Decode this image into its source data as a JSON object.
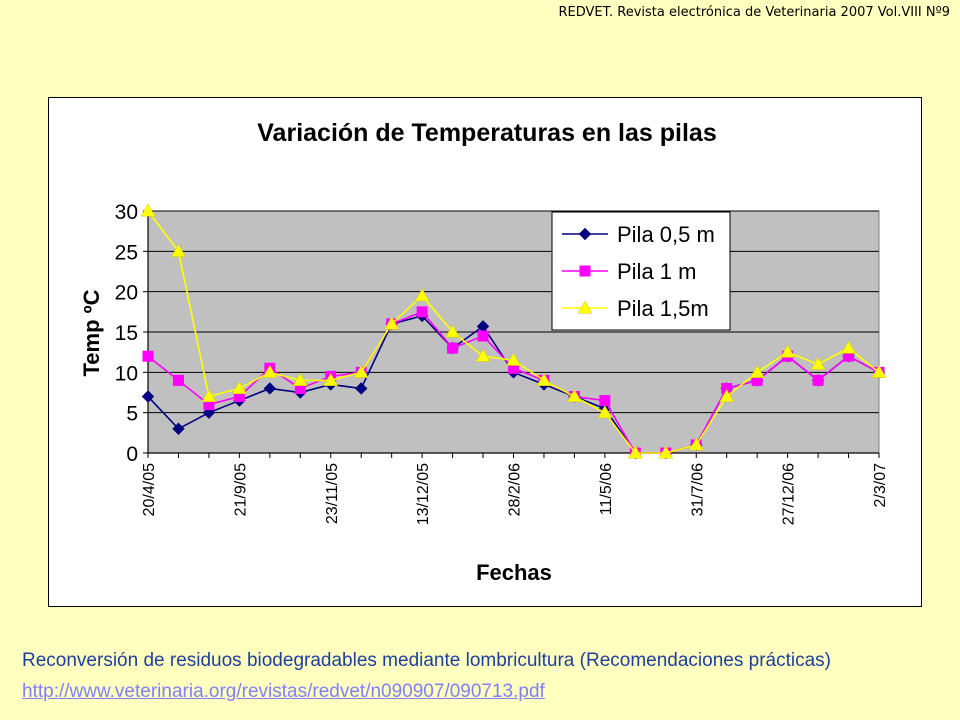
{
  "header": {
    "citation": "REDVET. Revista electrónica de Veterinaria 2007 Vol.VIII Nº9"
  },
  "footer": {
    "text": "Reconversión de residuos biodegradables mediante lombricultura (Recomendaciones prácticas)",
    "link": "http://www.veterinaria.org/revistas/redvet/n090907/090713.pdf"
  },
  "chart_data": {
    "type": "line",
    "title": "Variación de Temperaturas en las pilas",
    "xlabel": "Fechas",
    "ylabel": "Temp ºC",
    "ylim": [
      0,
      30
    ],
    "yticks": [
      0,
      5,
      10,
      15,
      20,
      25,
      30
    ],
    "grid": true,
    "plot_background": "#c0c0c0",
    "legend_position": "top-right",
    "x_tick_labels": [
      {
        "index": 0,
        "label": "20/4/05"
      },
      {
        "index": 3,
        "label": "21/9/05"
      },
      {
        "index": 6,
        "label": "23/11/05"
      },
      {
        "index": 9,
        "label": "13/12/05"
      },
      {
        "index": 12,
        "label": "28/2/06"
      },
      {
        "index": 15,
        "label": "11/5/06"
      },
      {
        "index": 18,
        "label": "31/7/06"
      },
      {
        "index": 21,
        "label": "27/12/06"
      },
      {
        "index": 24,
        "label": "2/3/07"
      }
    ],
    "num_points": 25,
    "series": [
      {
        "name": "Pila 0,5 m",
        "color": "#000080",
        "marker": "diamond",
        "values": [
          7,
          3,
          5,
          6.5,
          8,
          7.5,
          8.5,
          8,
          16,
          17,
          13,
          15.7,
          10,
          8.5,
          7,
          5.5,
          0,
          0,
          1,
          8,
          9,
          12,
          9,
          12,
          10
        ]
      },
      {
        "name": "Pila 1 m",
        "color": "#ff00ff",
        "marker": "square",
        "values": [
          12,
          9,
          6,
          7,
          10.5,
          8,
          9.5,
          10,
          16,
          17.5,
          13,
          14.5,
          10.5,
          9,
          7,
          6.5,
          0,
          0,
          1,
          8,
          9,
          12,
          9,
          12,
          10
        ]
      },
      {
        "name": "Pila 1,5m",
        "color": "#ffff00",
        "marker": "triangle",
        "values": [
          30,
          25,
          7,
          8,
          10,
          9,
          9,
          10,
          16,
          19.5,
          15,
          12,
          11.5,
          9,
          7,
          5,
          0,
          0,
          1,
          7,
          10,
          12.5,
          11,
          13,
          10
        ]
      }
    ]
  }
}
